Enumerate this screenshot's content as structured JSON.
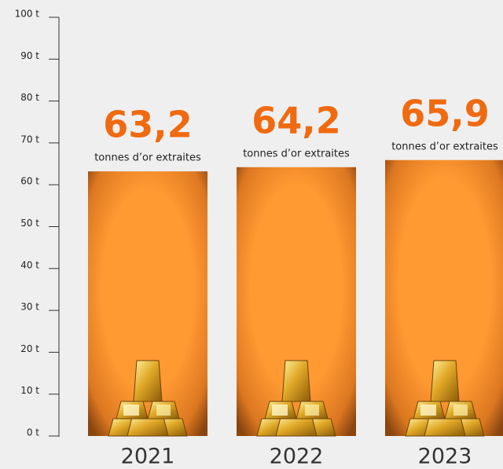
{
  "chart_data": {
    "type": "bar",
    "categories": [
      "2021",
      "2022",
      "2023"
    ],
    "values": [
      63.2,
      64.2,
      65.9
    ],
    "value_labels": [
      "63,2",
      "64,2",
      "65,9"
    ],
    "value_caption": "tonnes d’or extraites",
    "color": "#ff9933",
    "ylim": [
      0,
      100
    ],
    "yticks": [
      {
        "value": 0,
        "label": "0 t"
      },
      {
        "value": 10,
        "label": "10 t"
      },
      {
        "value": 20,
        "label": "20 t"
      },
      {
        "value": 30,
        "label": "30 t"
      },
      {
        "value": 40,
        "label": "40 t"
      },
      {
        "value": 50,
        "label": "50 t"
      },
      {
        "value": 60,
        "label": "60 t"
      },
      {
        "value": 70,
        "label": "70 t"
      },
      {
        "value": 80,
        "label": "80 t"
      },
      {
        "value": 90,
        "label": "90 t"
      },
      {
        "value": 100,
        "label": "100 t"
      }
    ]
  }
}
